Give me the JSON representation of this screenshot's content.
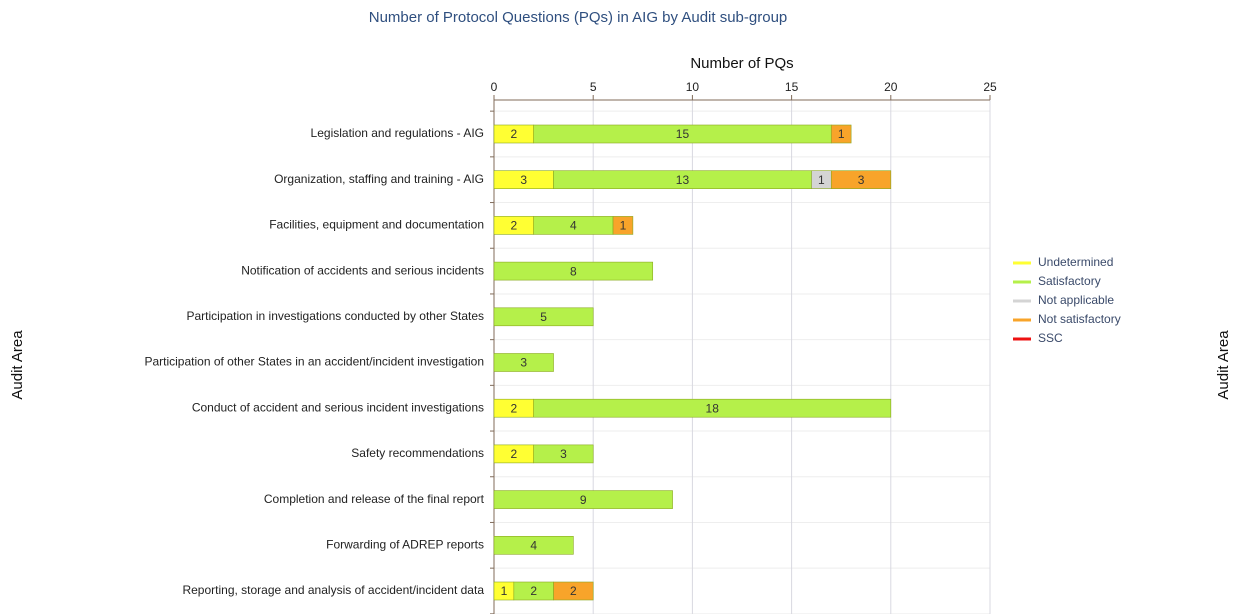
{
  "chart_data": {
    "type": "stacked_bar_horizontal",
    "title": "Number of Protocol Questions (PQs) in AIG by Audit sub-group",
    "x_label": "Number of PQs",
    "y_label": "Audit Area",
    "categories": [
      "Legislation and regulations - AIG",
      "Organization, staffing and training - AIG",
      "Facilities, equipment and documentation",
      "Notification of accidents and serious incidents",
      "Participation in investigations conducted by other States",
      "Participation of other States in an accident/incident investigation",
      "Conduct of accident and serious incident investigations",
      "Safety recommendations",
      "Completion and release of the final report",
      "Forwarding of ADREP reports",
      "Reporting, storage and analysis of accident/incident data"
    ],
    "series": [
      {
        "name": "Undetermined",
        "color": "#ffff33",
        "values": [
          2,
          3,
          2,
          null,
          null,
          null,
          2,
          2,
          null,
          null,
          1
        ]
      },
      {
        "name": "Satisfactory",
        "color": "#b5f04a",
        "values": [
          15,
          13,
          4,
          8,
          5,
          3,
          18,
          3,
          9,
          4,
          2
        ]
      },
      {
        "name": "Not applicable",
        "color": "#d4d4d4",
        "values": [
          null,
          1,
          null,
          null,
          null,
          null,
          null,
          null,
          null,
          null,
          null
        ]
      },
      {
        "name": "Not satisfactory",
        "color": "#f8a42a",
        "values": [
          1,
          3,
          1,
          null,
          null,
          null,
          null,
          null,
          null,
          null,
          2
        ]
      },
      {
        "name": "SSC",
        "color": "#ee1111",
        "values": [
          null,
          null,
          null,
          null,
          null,
          null,
          null,
          null,
          null,
          null,
          null
        ]
      }
    ],
    "xlim": [
      0,
      25
    ],
    "xticks": [
      0,
      5,
      10,
      15,
      20,
      25
    ],
    "grid": true,
    "legend": "right"
  }
}
